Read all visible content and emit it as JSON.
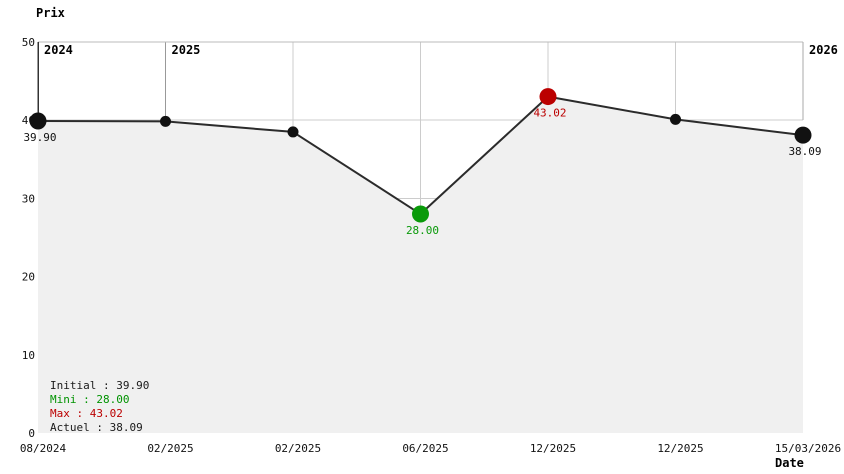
{
  "chart": {
    "y_axis_title": "Prix",
    "x_axis_title": "Date"
  },
  "chart_data": {
    "type": "area",
    "title": "Prix",
    "xlabel": "Date",
    "ylim": [
      0,
      50
    ],
    "y_ticks": [
      50,
      40,
      30,
      20,
      10,
      0
    ],
    "x_labels": [
      "08/2024",
      "02/2025",
      "02/2025",
      "06/2025",
      "12/2025",
      "12/2025",
      "15/03/2026"
    ],
    "points": [
      {
        "x_label": "08/2024",
        "value": 39.9,
        "label": "39.90",
        "marker": "large",
        "color": "#111111"
      },
      {
        "x_label": "02/2025",
        "value": 39.85,
        "label": "",
        "marker": "small",
        "color": "#111111"
      },
      {
        "x_label": "02/2025",
        "value": 38.5,
        "label": "",
        "marker": "small",
        "color": "#111111"
      },
      {
        "x_label": "06/2025",
        "value": 28.0,
        "label": "28.00",
        "marker": "large",
        "color": "#0a9a0a"
      },
      {
        "x_label": "12/2025",
        "value": 43.02,
        "label": "43.02",
        "marker": "large",
        "color": "#bb0000"
      },
      {
        "x_label": "12/2025",
        "value": 40.1,
        "label": "",
        "marker": "small",
        "color": "#111111"
      },
      {
        "x_label": "15/03/2026",
        "value": 38.09,
        "label": "38.09",
        "marker": "large",
        "color": "#111111"
      }
    ],
    "year_markers": [
      {
        "label": "2024",
        "point_index": 0
      },
      {
        "label": "2025",
        "point_index": 1
      },
      {
        "label": "2026",
        "point_index": 6
      }
    ],
    "line_color": "#2b2b2b",
    "fill_color": "#f0f0f0",
    "grid_color": "#cccccc",
    "year_line_color": "#999999",
    "border_color": "#bbbbbb",
    "left_border_color": "#333333",
    "tick_label_color": "#111111",
    "legend_position": "bottom-left",
    "grid": true
  },
  "legend": {
    "items": [
      {
        "label": "Initial",
        "value": "39.90",
        "color": "#1a1a1a"
      },
      {
        "label": "Mini",
        "value": "28.00",
        "color": "#009300"
      },
      {
        "label": "Max",
        "value": "43.02",
        "color": "#bb0000"
      },
      {
        "label": "Actuel",
        "value": "38.09",
        "color": "#1a1a1a"
      }
    ]
  }
}
